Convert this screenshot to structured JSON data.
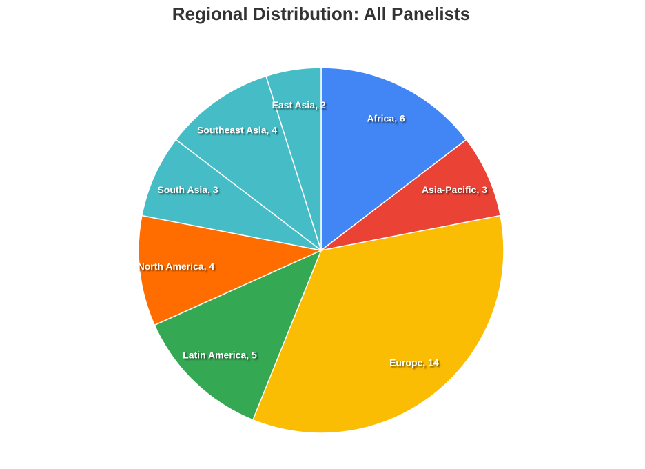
{
  "chart_data": {
    "type": "pie",
    "title": "Regional Distribution: All Panelists",
    "categories": [
      "Africa",
      "Asia-Pacific",
      "Europe",
      "Latin America",
      "North America",
      "South Asia",
      "Southeast Asia",
      "East Asia"
    ],
    "values": [
      6,
      3,
      14,
      5,
      4,
      3,
      4,
      2
    ],
    "value_labels": [
      "Africa, 6",
      "Asia-Pacific, 3",
      "Europe, 14",
      "Latin America, 5",
      "North America, 4",
      "South Asia, 3",
      "Southeast Asia, 4",
      "East Asia, 2"
    ],
    "colors": [
      "#4285f4",
      "#ea4335",
      "#fbbc04",
      "#34a853",
      "#ff6d01",
      "#46bdc6",
      "#46bdc6",
      "#46bdc6"
    ]
  }
}
